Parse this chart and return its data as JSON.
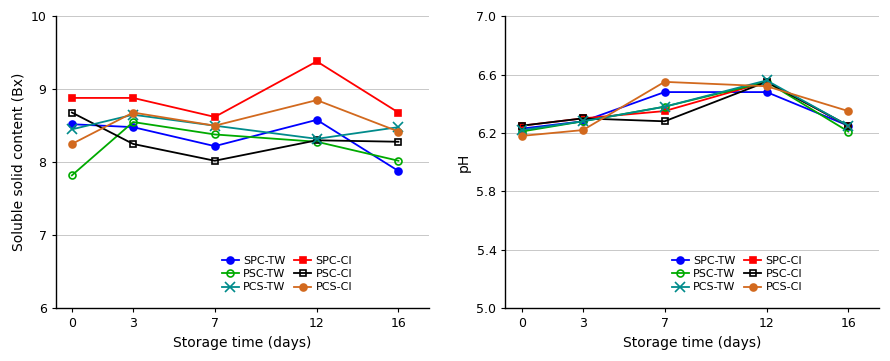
{
  "x": [
    0,
    3,
    7,
    12,
    16
  ],
  "left_ylabel": "Soluble solid content (Bx)",
  "left_xlabel": "Storage time (days)",
  "left_ylim": [
    6,
    10
  ],
  "left_yticks": [
    6,
    7,
    8,
    9,
    10
  ],
  "right_ylabel": "pH",
  "right_xlabel": "Storage time (days)",
  "right_ylim": [
    5.0,
    7.0
  ],
  "right_yticks": [
    5.0,
    5.4,
    5.8,
    6.2,
    6.6,
    7.0
  ],
  "series_left": [
    {
      "label": "SPC-TW",
      "color": "#0000FF",
      "marker": "o",
      "fillstyle": "full",
      "linestyle": "-",
      "values": [
        8.52,
        8.48,
        8.22,
        8.58,
        7.88
      ]
    },
    {
      "label": "SPC-CI",
      "color": "#FF0000",
      "marker": "s",
      "fillstyle": "full",
      "linestyle": "-",
      "values": [
        8.88,
        8.88,
        8.62,
        9.38,
        8.68
      ]
    },
    {
      "label": "PSC-TW",
      "color": "#00AA00",
      "marker": "o",
      "fillstyle": "none",
      "linestyle": "-",
      "values": [
        7.82,
        8.55,
        8.38,
        8.28,
        8.02
      ]
    },
    {
      "label": "PSC-CI",
      "color": "#000000",
      "marker": "s",
      "fillstyle": "none",
      "linestyle": "-",
      "values": [
        8.68,
        8.25,
        8.02,
        8.3,
        8.28
      ]
    },
    {
      "label": "PCS-TW",
      "color": "#008B8B",
      "marker": "x",
      "fillstyle": "full",
      "linestyle": "-",
      "values": [
        8.45,
        8.65,
        8.5,
        8.32,
        8.48
      ]
    },
    {
      "label": "PCS-CI",
      "color": "#D2691E",
      "marker": "o",
      "fillstyle": "full",
      "linestyle": "-",
      "values": [
        8.25,
        8.68,
        8.5,
        8.85,
        8.42
      ]
    }
  ],
  "series_right": [
    {
      "label": "SPC-TW",
      "color": "#0000FF",
      "marker": "o",
      "fillstyle": "full",
      "linestyle": "-",
      "values": [
        6.23,
        6.28,
        6.48,
        6.48,
        6.25
      ]
    },
    {
      "label": "SPC-CI",
      "color": "#FF0000",
      "marker": "s",
      "fillstyle": "full",
      "linestyle": "-",
      "values": [
        6.25,
        6.3,
        6.35,
        6.55,
        6.25
      ]
    },
    {
      "label": "PSC-TW",
      "color": "#00AA00",
      "marker": "o",
      "fillstyle": "none",
      "linestyle": "-",
      "values": [
        6.21,
        6.28,
        6.38,
        6.55,
        6.21
      ]
    },
    {
      "label": "PSC-CI",
      "color": "#000000",
      "marker": "s",
      "fillstyle": "none",
      "linestyle": "-",
      "values": [
        6.25,
        6.3,
        6.28,
        6.55,
        6.25
      ]
    },
    {
      "label": "PCS-TW",
      "color": "#008B8B",
      "marker": "x",
      "fillstyle": "full",
      "linestyle": "-",
      "values": [
        6.22,
        6.28,
        6.38,
        6.56,
        6.25
      ]
    },
    {
      "label": "PCS-CI",
      "color": "#D2691E",
      "marker": "o",
      "fillstyle": "full",
      "linestyle": "-",
      "values": [
        6.18,
        6.22,
        6.55,
        6.52,
        6.35
      ]
    }
  ],
  "background_color": "#FFFFFF",
  "grid_color": "#C8C8C8",
  "figsize": [
    8.9,
    3.61
  ],
  "dpi": 100
}
